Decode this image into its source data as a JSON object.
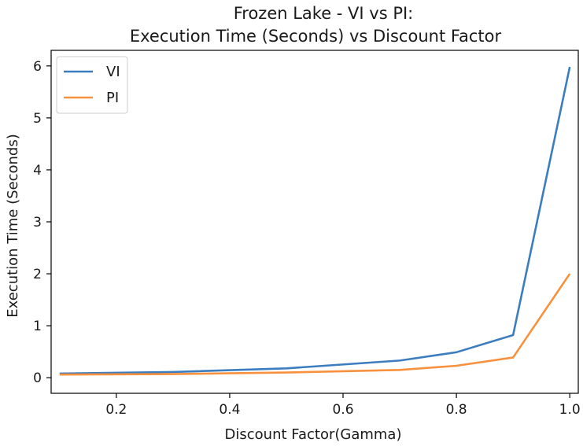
{
  "chart_data": {
    "type": "line",
    "title_lines": [
      "Frozen Lake - VI vs PI:",
      "Execution Time (Seconds) vs Discount Factor"
    ],
    "xlabel": "Discount Factor(Gamma)",
    "ylabel": "Execution Time (Seconds)",
    "xlim": [
      0.085,
      1.015
    ],
    "ylim": [
      -0.3,
      6.3
    ],
    "xticks": [
      0.2,
      0.4,
      0.6,
      0.8,
      1.0
    ],
    "xtick_labels": [
      "0.2",
      "0.4",
      "0.6",
      "0.8",
      "1.0"
    ],
    "yticks": [
      0,
      1,
      2,
      3,
      4,
      5,
      6
    ],
    "ytick_labels": [
      "0",
      "1",
      "2",
      "3",
      "4",
      "5",
      "6"
    ],
    "grid": false,
    "legend_position": "top-left",
    "x": [
      0.1,
      0.3,
      0.5,
      0.7,
      0.8,
      0.9,
      1.0
    ],
    "series": [
      {
        "name": "VI",
        "color": "#3b7dbf",
        "values": [
          0.08,
          0.11,
          0.18,
          0.33,
          0.49,
          0.82,
          5.98
        ]
      },
      {
        "name": "PI",
        "color": "#f7913d",
        "values": [
          0.06,
          0.07,
          0.1,
          0.15,
          0.23,
          0.39,
          2.0
        ]
      }
    ]
  }
}
